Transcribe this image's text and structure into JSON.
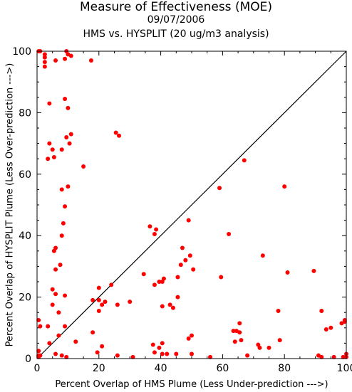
{
  "chart_data": {
    "type": "scatter",
    "title": "Measure of Effectiveness (MOE)",
    "subtitle": "09/07/2006",
    "subtitle2": "HMS vs. HYSPLIT  (20 ug/m3 analysis)",
    "xlabel": "Percent Overlap of HMS Plume (Less Under-prediction --->)",
    "ylabel": "Percent Overlap of HYSPLIT Plume (Less Over-prediction --->)",
    "xlim": [
      0,
      100
    ],
    "ylim": [
      0,
      100
    ],
    "xticks": [
      "0",
      "20",
      "40",
      "60",
      "80",
      "100"
    ],
    "yticks": [
      "0",
      "20",
      "40",
      "60",
      "80",
      "100"
    ],
    "reference_line": "y = x",
    "point_color": "#ff0000",
    "line_color": "#000000",
    "points": [
      [
        0.5,
        100
      ],
      [
        1,
        100
      ],
      [
        2.5,
        99
      ],
      [
        2.5,
        98
      ],
      [
        2.5,
        96.5
      ],
      [
        2.5,
        95
      ],
      [
        6,
        97
      ],
      [
        9.5,
        100
      ],
      [
        10,
        99
      ],
      [
        9,
        97.5
      ],
      [
        11,
        98.5
      ],
      [
        17.5,
        97
      ],
      [
        9,
        84.5
      ],
      [
        4,
        83
      ],
      [
        10,
        81.5
      ],
      [
        11,
        73
      ],
      [
        9.5,
        72
      ],
      [
        10.5,
        70
      ],
      [
        4,
        70
      ],
      [
        5,
        68
      ],
      [
        8,
        68
      ],
      [
        3.5,
        65
      ],
      [
        5.5,
        65.5
      ],
      [
        15,
        62.5
      ],
      [
        10,
        56
      ],
      [
        8,
        55
      ],
      [
        25.5,
        73.5
      ],
      [
        26.5,
        72.5
      ],
      [
        9,
        49.5
      ],
      [
        8.5,
        44
      ],
      [
        8,
        40
      ],
      [
        6,
        36
      ],
      [
        5.5,
        35
      ],
      [
        6,
        29
      ],
      [
        7.5,
        30.5
      ],
      [
        5,
        22.5
      ],
      [
        6,
        21
      ],
      [
        9,
        20.5
      ],
      [
        5,
        17.5
      ],
      [
        7,
        15
      ],
      [
        0.5,
        12.5
      ],
      [
        1,
        10.5
      ],
      [
        3.5,
        10.5
      ],
      [
        9,
        10.5
      ],
      [
        4,
        5
      ],
      [
        7,
        7.5
      ],
      [
        12.5,
        5.5
      ],
      [
        18,
        8.5
      ],
      [
        20,
        19
      ],
      [
        18,
        19
      ],
      [
        20,
        23
      ],
      [
        21,
        17.5
      ],
      [
        22,
        18.5
      ],
      [
        20,
        15.5
      ],
      [
        24,
        24
      ],
      [
        26,
        17.5
      ],
      [
        30,
        18.5
      ],
      [
        21,
        4
      ],
      [
        19.5,
        2
      ],
      [
        26,
        1
      ],
      [
        31,
        0.5
      ],
      [
        0.5,
        1
      ],
      [
        0.5,
        2.5
      ],
      [
        1,
        1
      ],
      [
        0.5,
        0.5
      ],
      [
        6,
        1.5
      ],
      [
        8,
        1
      ],
      [
        9.5,
        0.5
      ],
      [
        34.5,
        27.5
      ],
      [
        36.5,
        43
      ],
      [
        38,
        40.5
      ],
      [
        38.5,
        42
      ],
      [
        38,
        24
      ],
      [
        39.5,
        25
      ],
      [
        41,
        26
      ],
      [
        40.5,
        25
      ],
      [
        40.5,
        17
      ],
      [
        43,
        17.5
      ],
      [
        44,
        16.5
      ],
      [
        45.5,
        20
      ],
      [
        45.5,
        26.5
      ],
      [
        46.5,
        30.5
      ],
      [
        47,
        36
      ],
      [
        48,
        32
      ],
      [
        49,
        45
      ],
      [
        49.5,
        33.5
      ],
      [
        50.5,
        29
      ],
      [
        49,
        6.5
      ],
      [
        50,
        7.5
      ],
      [
        40.5,
        5
      ],
      [
        37.5,
        4.5
      ],
      [
        39.5,
        3.5
      ],
      [
        38,
        2
      ],
      [
        40.5,
        1.5
      ],
      [
        42,
        1.5
      ],
      [
        45,
        1.5
      ],
      [
        50,
        1.5
      ],
      [
        56,
        0.5
      ],
      [
        59,
        55.5
      ],
      [
        59.5,
        26.5
      ],
      [
        62,
        40.5
      ],
      [
        67,
        64.5
      ],
      [
        63.5,
        9
      ],
      [
        64.5,
        9
      ],
      [
        65.5,
        8.5
      ],
      [
        65.5,
        11.5
      ],
      [
        64,
        5.5
      ],
      [
        66,
        6
      ],
      [
        68,
        1
      ],
      [
        71.5,
        4.5
      ],
      [
        72,
        3.5
      ],
      [
        73,
        33.5
      ],
      [
        75,
        3.5
      ],
      [
        78,
        15.5
      ],
      [
        78.5,
        6
      ],
      [
        80,
        56
      ],
      [
        81,
        28
      ],
      [
        89.5,
        28.5
      ],
      [
        91,
        1
      ],
      [
        92,
        15.5
      ],
      [
        92,
        0.5
      ],
      [
        93.5,
        9.5
      ],
      [
        95,
        10
      ],
      [
        96,
        0.5
      ],
      [
        98.5,
        11.5
      ],
      [
        99.5,
        12.5
      ],
      [
        99,
        0.5
      ],
      [
        100,
        1.5
      ],
      [
        100,
        0.5
      ],
      [
        99.5,
        12
      ]
    ]
  }
}
